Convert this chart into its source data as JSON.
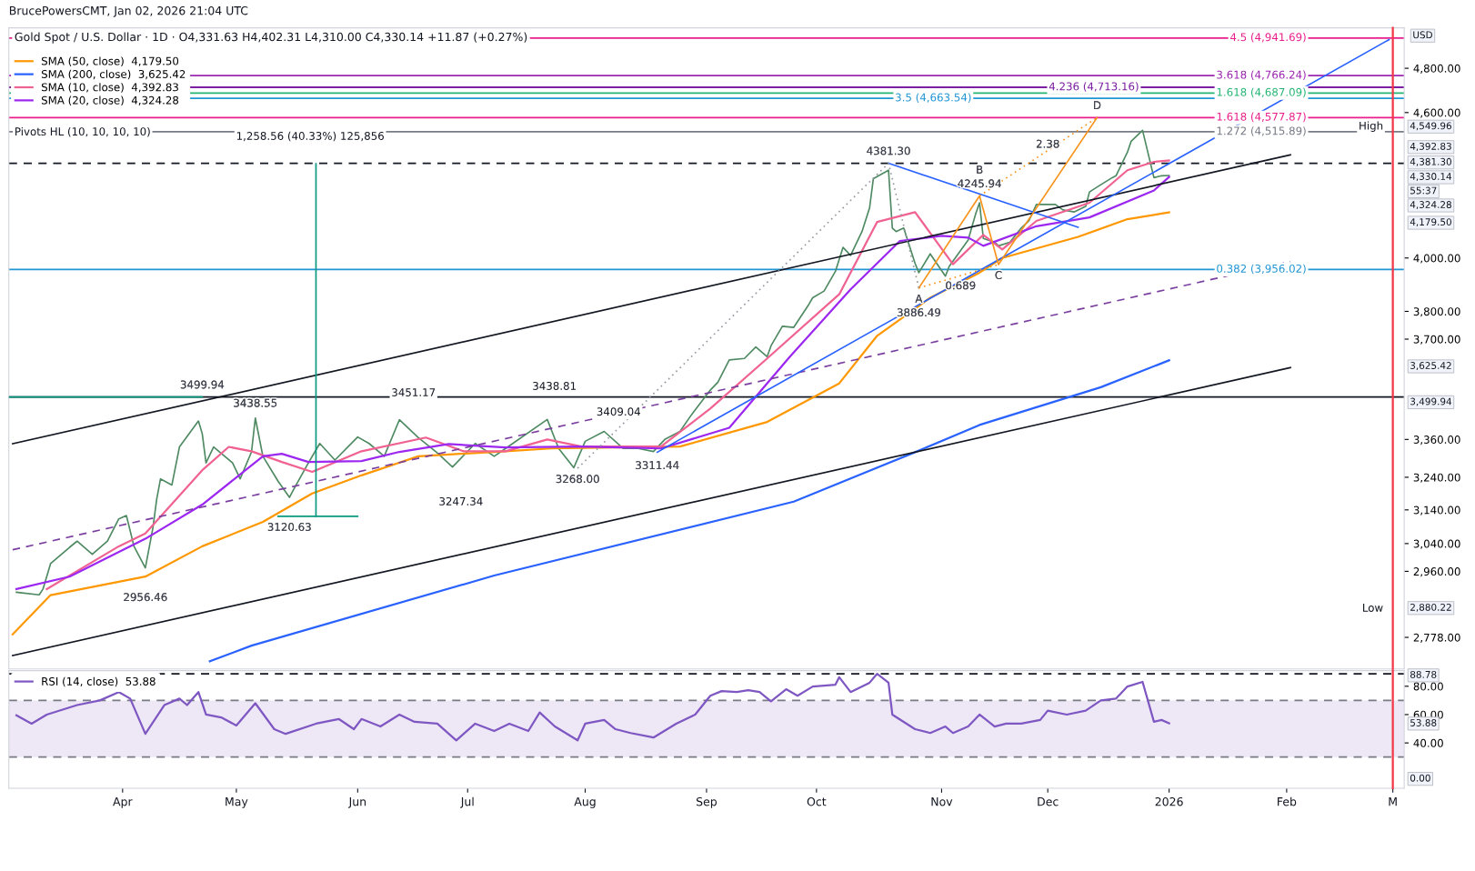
{
  "chart_data": [
    {
      "type": "line",
      "title": "Gold Spot / U.S. Dollar · 1D · O4,331.63 H4,402.31 L4,310.00 C4,330.14 +11.87 (+0.27%)",
      "subtitle": "BrucePowersCMT, Jan 02, 2026 21:04 UTC",
      "log": true,
      "legend": "top left",
      "tick_labels": "y",
      "xlim": [
        "2025-03-02",
        "2026-03-05"
      ],
      "ylim": [
        2695,
        4990
      ],
      "yticks": [
        {
          "value": 2778,
          "label": "2,778.00"
        },
        {
          "value": 2960,
          "label": "2,960.00"
        },
        {
          "value": 3040,
          "label": "3,040.00"
        },
        {
          "value": 3140,
          "label": "3,140.00"
        },
        {
          "value": 3240,
          "label": "3,240.00"
        },
        {
          "value": 3360,
          "label": "3,360.00"
        },
        {
          "value": 3700,
          "label": "3,700.00"
        },
        {
          "value": 3800,
          "label": "3,800.00"
        },
        {
          "value": 4000,
          "label": "4,000.00"
        },
        {
          "value": 4600,
          "label": "4,600.00"
        },
        {
          "value": 4800,
          "label": "4,800.00"
        }
      ],
      "series": [
        {
          "color": "#4f8a63",
          "x": [
            "2025-03-04",
            "2025-03-10",
            "2025-03-11",
            "2025-03-13",
            "2025-03-18",
            "2025-03-20",
            "2025-03-24",
            "2025-03-28",
            "2025-03-31",
            "2025-04-02",
            "2025-04-04",
            "2025-04-07",
            "2025-04-09",
            "2025-04-10",
            "2025-04-11",
            "2025-04-14",
            "2025-04-16",
            "2025-04-21",
            "2025-04-22",
            "2025-04-23",
            "2025-04-25",
            "2025-04-30",
            "2025-05-02",
            "2025-05-05",
            "2025-05-06",
            "2025-05-08",
            "2025-05-12",
            "2025-05-15",
            "2025-05-16",
            "2025-05-20",
            "2025-05-23",
            "2025-05-27",
            "2025-06-02",
            "2025-06-05",
            "2025-06-09",
            "2025-06-13",
            "2025-06-18",
            "2025-06-23",
            "2025-06-27",
            "2025-07-03",
            "2025-07-08",
            "2025-07-11",
            "2025-07-22",
            "2025-07-25",
            "2025-07-29",
            "2025-08-01",
            "2025-08-06",
            "2025-08-11",
            "2025-08-15",
            "2025-08-19",
            "2025-08-22",
            "2025-08-26",
            "2025-08-29",
            "2025-09-03",
            "2025-09-05",
            "2025-09-08",
            "2025-09-12",
            "2025-09-15",
            "2025-09-18",
            "2025-09-19",
            "2025-09-22",
            "2025-09-25",
            "2025-09-29",
            "2025-09-30",
            "2025-10-03",
            "2025-10-06",
            "2025-10-08",
            "2025-10-10",
            "2025-10-13",
            "2025-10-15",
            "2025-10-16",
            "2025-10-20",
            "2025-10-21",
            "2025-10-22",
            "2025-10-24",
            "2025-10-27",
            "2025-10-28",
            "2025-10-31",
            "2025-11-04",
            "2025-11-05",
            "2025-11-10",
            "2025-11-12",
            "2025-11-13",
            "2025-11-14",
            "2025-11-17",
            "2025-11-18",
            "2025-11-21",
            "2025-11-24",
            "2025-11-26",
            "2025-11-28",
            "2025-12-03",
            "2025-12-05",
            "2025-12-08",
            "2025-12-11",
            "2025-12-12",
            "2025-12-15",
            "2025-12-18",
            "2025-12-19",
            "2025-12-22",
            "2025-12-23",
            "2025-12-26",
            "2025-12-29",
            "2025-12-31",
            "2026-01-02"
          ],
          "values": [
            2901,
            2894,
            2910,
            2982,
            3029,
            3047,
            3009,
            3047,
            3113,
            3123,
            3032,
            2970,
            3087,
            3173,
            3235,
            3216,
            3336,
            3420,
            3379,
            3285,
            3336,
            3285,
            3235,
            3320,
            3430,
            3306,
            3228,
            3178,
            3200,
            3285,
            3347,
            3294,
            3368,
            3347,
            3306,
            3424,
            3366,
            3317,
            3272,
            3347,
            3306,
            3331,
            3425,
            3331,
            3270,
            3354,
            3386,
            3331,
            3331,
            3321,
            3360,
            3386,
            3440,
            3523,
            3550,
            3627,
            3632,
            3672,
            3638,
            3676,
            3746,
            3742,
            3826,
            3850,
            3875,
            3949,
            4041,
            4010,
            4103,
            4197,
            4317,
            4352,
            4117,
            4103,
            4117,
            3979,
            3944,
            4016,
            3931,
            3968,
            4070,
            4174,
            4218,
            4076,
            4061,
            4047,
            4061,
            4117,
            4145,
            4211,
            4211,
            4189,
            4181,
            4203,
            4262,
            4292,
            4321,
            4329,
            4428,
            4475,
            4522,
            4321,
            4329,
            4330.14
          ]
        },
        {
          "name": "SMA (50, close)  4,179.50",
          "color": "#ff9800",
          "x": [
            "2025-03-03",
            "2025-03-13",
            "2025-04-07",
            "2025-04-22",
            "2025-05-08",
            "2025-05-21",
            "2025-06-03",
            "2025-06-18",
            "2025-07-11",
            "2025-07-23",
            "2025-08-26",
            "2025-09-18",
            "2025-10-07",
            "2025-10-17",
            "2025-10-31",
            "2025-11-13",
            "2025-11-19",
            "2025-12-09",
            "2025-12-22",
            "2026-01-02"
          ],
          "values": [
            2786,
            2893,
            2945,
            3032,
            3104,
            3190,
            3246,
            3306,
            3322,
            3331,
            3337,
            3417,
            3546,
            3712,
            3850,
            3944,
            4000,
            4082,
            4152,
            4179.5
          ]
        },
        {
          "name": "SMA (200, close)  3,625.42",
          "color": "#2962ff",
          "x": [
            "2025-04-24",
            "2025-05-05",
            "2025-07-08",
            "2025-09-25",
            "2025-10-27",
            "2025-11-13",
            "2025-12-15",
            "2026-01-02"
          ],
          "values": [
            2715,
            2756,
            2948,
            3165,
            3319,
            3407,
            3533,
            3625.42
          ]
        },
        {
          "name": "SMA (10, close)  4,392.83",
          "color": "#f06292",
          "x": [
            "2025-03-12",
            "2025-03-31",
            "2025-04-07",
            "2025-04-22",
            "2025-04-29",
            "2025-05-05",
            "2025-05-13",
            "2025-05-21",
            "2025-06-03",
            "2025-06-20",
            "2025-06-30",
            "2025-07-11",
            "2025-07-22",
            "2025-07-31",
            "2025-08-21",
            "2025-09-03",
            "2025-09-18",
            "2025-10-07",
            "2025-10-17",
            "2025-10-27",
            "2025-11-06",
            "2025-11-14",
            "2025-11-19",
            "2025-11-28",
            "2025-12-12",
            "2025-12-22",
            "2025-12-29",
            "2026-01-02"
          ],
          "values": [
            2910,
            3032,
            3070,
            3262,
            3336,
            3322,
            3288,
            3257,
            3322,
            3366,
            3322,
            3322,
            3360,
            3337,
            3337,
            3461,
            3632,
            3863,
            4141,
            4180,
            3976,
            4090,
            4033,
            4145,
            4218,
            4352,
            4387,
            4392.83
          ]
        },
        {
          "name": "SMA (20, close)  4,324.28",
          "color": "#9c27f0",
          "x": [
            "2025-03-04",
            "2025-03-18",
            "2025-04-07",
            "2025-04-22",
            "2025-05-08",
            "2025-05-13",
            "2025-05-20",
            "2025-06-03",
            "2025-06-13",
            "2025-06-26",
            "2025-07-11",
            "2025-07-31",
            "2025-08-21",
            "2025-09-08",
            "2025-09-24",
            "2025-10-10",
            "2025-10-23",
            "2025-11-03",
            "2025-11-10",
            "2025-11-14",
            "2025-11-28",
            "2025-12-12",
            "2025-12-29",
            "2026-01-02"
          ],
          "values": [
            2910,
            2945,
            3054,
            3156,
            3306,
            3314,
            3288,
            3291,
            3320,
            3345,
            3334,
            3337,
            3331,
            3398,
            3638,
            3881,
            4066,
            4086,
            4079,
            4047,
            4124,
            4159,
            4268,
            4324.28
          ]
        },
        {
          "color": "#131722",
          "x": [
            "2025-03-03",
            "2026-02-03"
          ],
          "values": [
            3346,
            4417
          ]
        },
        {
          "color": "#131722",
          "x": [
            "2025-03-03",
            "2026-02-03"
          ],
          "values": [
            2730,
            3600
          ]
        },
        {
          "color": "#7b3fa0",
          "line_style": "dashed",
          "x": [
            "2025-03-03",
            "2026-02-03"
          ],
          "values": [
            3022,
            3986
          ]
        },
        {
          "color": "#2962ff",
          "x": [
            "2025-08-20",
            "2026-03-01"
          ],
          "values": [
            3319,
            4934
          ]
        },
        {
          "color": "#2962ff",
          "x": [
            "2025-10-20",
            "2025-12-09"
          ],
          "values": [
            4381.3,
            4120
          ]
        },
        {
          "color": "#f7931a",
          "x": [
            "2025-10-28",
            "2025-11-13",
            "2025-11-18",
            "2025-12-14"
          ],
          "values": [
            3886.49,
            4245.94,
            3975,
            4577.87
          ]
        },
        {
          "color": "#f7931a",
          "line_style": "dotted",
          "x": [
            "2025-10-28",
            "2025-11-18"
          ],
          "values": [
            3886.49,
            3975
          ]
        },
        {
          "color": "#f7931a",
          "line_style": "dotted",
          "x": [
            "2025-11-13",
            "2025-12-14"
          ],
          "values": [
            4245.94,
            4577.87
          ]
        },
        {
          "color": "#9598a1",
          "line_style": "dotted",
          "x": [
            "2025-07-30",
            "2025-10-20",
            "2025-10-28"
          ],
          "values": [
            3268.0,
            4381.3,
            3886.49
          ]
        },
        {
          "color": "#089981",
          "x": [
            "2025-05-22",
            "2025-05-22"
          ],
          "values": [
            3120.63,
            4379.19
          ]
        },
        {
          "color": "#089981",
          "x": [
            "2025-05-12",
            "2025-06-02"
          ],
          "values": [
            3120.63,
            3120.63
          ]
        },
        {
          "color": "#089981",
          "x": [
            "2025-03-02",
            "2025-04-22"
          ],
          "values": [
            3499.94,
            3499.94
          ]
        }
      ],
      "ref_lines": [
        {
          "axis": "y",
          "value": 4941.69,
          "label": "4.5 (4,941.69)",
          "color": "#e91e8c"
        },
        {
          "axis": "y",
          "value": 4766.24,
          "label": "3.618 (4,766.24)",
          "color": "#9c27b0"
        },
        {
          "axis": "y",
          "value": 4713.16,
          "label": "4.236 (4,713.16)",
          "color": "#7b1fa2"
        },
        {
          "axis": "y",
          "value": 4687.09,
          "label": "1.618 (4,687.09)",
          "color": "#22b573"
        },
        {
          "axis": "y",
          "value": 4663.54,
          "label": "3.5 (4,663.54)",
          "color": "#2196d3"
        },
        {
          "axis": "y",
          "value": 4577.87,
          "label": "1.618 (4,577.87)",
          "color": "#e91e8c"
        },
        {
          "axis": "y",
          "value": 4515.89,
          "label": "1.272 (4,515.89)",
          "color": "#787b86"
        },
        {
          "axis": "y",
          "value": 3956.02,
          "label": "0.382 (3,956.02)",
          "color": "#2196d3"
        },
        {
          "axis": "y",
          "value": 4381.3,
          "color": "#131722",
          "line_style": "dashed"
        },
        {
          "axis": "y",
          "value": 3499.94,
          "color": "#131722"
        },
        {
          "axis": "x",
          "value": "2026-03-02",
          "color": "#f23645"
        }
      ],
      "annotations": [
        "Pivots HL (10, 10, 10, 10)",
        "USD",
        "1,258.56 (40.33%) 125,856",
        "3451.17",
        "3247.34",
        "3438.81",
        "3409.04",
        "High",
        "Low",
        "4,549.96",
        "4,392.83",
        "4,381.30",
        "4,330.14",
        "55:37",
        "4,324.28",
        "4,179.50",
        "3,625.42",
        "3,499.94",
        "2,880.22",
        {
          "text": "3499.94",
          "x": "2025-04-22",
          "y": 3499.94
        },
        {
          "text": "3438.55",
          "x": "2025-05-06",
          "y": 3438.55
        },
        {
          "text": "2956.46",
          "x": "2025-04-07",
          "y": 2956.46
        },
        {
          "text": "3120.63",
          "x": "2025-05-15",
          "y": 3120.63
        },
        {
          "text": "3268.00",
          "x": "2025-07-30",
          "y": 3268.0
        },
        {
          "text": "3311.44",
          "x": "2025-08-20",
          "y": 3311.44
        },
        {
          "text": "4381.30",
          "x": "2025-10-20",
          "y": 4381.3
        },
        {
          "text": "3886.49",
          "x": "2025-10-28",
          "y": 3886.49
        },
        {
          "text": "4245.94",
          "x": "2025-11-13",
          "y": 4245.94
        },
        {
          "text": "A",
          "x": "2025-10-28",
          "y": 3886.49
        },
        {
          "text": "B",
          "x": "2025-11-13",
          "y": 4245.94
        },
        {
          "text": "C",
          "x": "2025-11-18",
          "y": 3975
        },
        {
          "text": "D",
          "x": "2025-12-14",
          "y": 4577.87
        },
        {
          "text": "2.38",
          "x": "2025-12-01",
          "y": 4411
        },
        {
          "text": "0.689",
          "x": "2025-11-08",
          "y": 3936
        }
      ]
    },
    {
      "type": "line",
      "legend": "top left",
      "xlim": [
        "2025-03-02",
        "2026-03-05"
      ],
      "xticks": [
        {
          "value": "2025-04-01",
          "label": "Apr"
        },
        {
          "value": "2025-05-01",
          "label": "May"
        },
        {
          "value": "2025-06-02",
          "label": "Jun"
        },
        {
          "value": "2025-07-01",
          "label": "Jul"
        },
        {
          "value": "2025-08-01",
          "label": "Aug"
        },
        {
          "value": "2025-09-02",
          "label": "Sep"
        },
        {
          "value": "2025-10-01",
          "label": "Oct"
        },
        {
          "value": "2025-11-03",
          "label": "Nov"
        },
        {
          "value": "2025-12-01",
          "label": "Dec"
        },
        {
          "value": "2026-01-02",
          "label": "2026"
        },
        {
          "value": "2026-02-02",
          "label": "Feb"
        },
        {
          "value": "2026-03-02",
          "label": "M"
        }
      ],
      "ylim": [
        8,
        91
      ],
      "yticks": [
        {
          "value": 40,
          "label": "40.00"
        },
        {
          "value": 60,
          "label": "60.00"
        },
        {
          "value": 80,
          "label": "80.00"
        }
      ],
      "series": [
        {
          "name": "RSI (14, close)  53.88",
          "color": "#7e57c2",
          "x": [
            "2025-03-04",
            "2025-03-08",
            "2025-03-12",
            "2025-03-20",
            "2025-03-26",
            "2025-03-31",
            "2025-04-03",
            "2025-04-07",
            "2025-04-12",
            "2025-04-16",
            "2025-04-18",
            "2025-04-21",
            "2025-04-23",
            "2025-04-27",
            "2025-05-01",
            "2025-05-06",
            "2025-05-11",
            "2025-05-14",
            "2025-05-22",
            "2025-05-28",
            "2025-06-01",
            "2025-06-03",
            "2025-06-08",
            "2025-06-13",
            "2025-06-17",
            "2025-06-23",
            "2025-06-28",
            "2025-07-03",
            "2025-07-08",
            "2025-07-12",
            "2025-07-17",
            "2025-07-20",
            "2025-07-24",
            "2025-07-30",
            "2025-08-01",
            "2025-08-06",
            "2025-08-09",
            "2025-08-13",
            "2025-08-19",
            "2025-08-25",
            "2025-08-30",
            "2025-09-03",
            "2025-09-06",
            "2025-09-10",
            "2025-09-13",
            "2025-09-16",
            "2025-09-19",
            "2025-09-23",
            "2025-09-26",
            "2025-09-30",
            "2025-10-06",
            "2025-10-07",
            "2025-10-10",
            "2025-10-15",
            "2025-10-17",
            "2025-10-20",
            "2025-10-21",
            "2025-10-27",
            "2025-10-31",
            "2025-11-04",
            "2025-11-06",
            "2025-11-10",
            "2025-11-13",
            "2025-11-17",
            "2025-11-20",
            "2025-11-24",
            "2025-11-29",
            "2025-12-01",
            "2025-12-06",
            "2025-12-11",
            "2025-12-15",
            "2025-12-19",
            "2025-12-22",
            "2025-12-26",
            "2025-12-29",
            "2025-12-31",
            "2026-01-02"
          ],
          "values": [
            59.5,
            53.6,
            60,
            66.7,
            70,
            75.9,
            71.3,
            46.4,
            66.7,
            71.3,
            66.7,
            75.9,
            60,
            58,
            52.3,
            68,
            49.7,
            46.4,
            53.6,
            56.9,
            49.7,
            56.9,
            51.6,
            60,
            54.9,
            53.6,
            41.8,
            53.6,
            48.4,
            53.6,
            48.4,
            61.5,
            51.6,
            41.8,
            53.6,
            56.2,
            49.7,
            47,
            43.8,
            53.6,
            60,
            73.3,
            76.6,
            75.9,
            77.2,
            75.9,
            69.3,
            77.9,
            73.3,
            79.8,
            81.1,
            86.4,
            75.9,
            82.5,
            88.8,
            82.5,
            60,
            49.7,
            47,
            51.6,
            47,
            51.6,
            60,
            51.6,
            53.6,
            53.6,
            56.2,
            62.8,
            60,
            62.8,
            70,
            71.3,
            79.8,
            83.1,
            54.9,
            56.2,
            53.9
          ]
        }
      ],
      "bands": [
        {
          "axis": "y",
          "from": 30,
          "to": 70,
          "color": "#ede7f6"
        }
      ],
      "ref_lines": [
        {
          "axis": "y",
          "value": 70,
          "color": "#787b86",
          "line_style": "dashed"
        },
        {
          "axis": "y",
          "value": 30,
          "color": "#787b86",
          "line_style": "dashed"
        },
        {
          "axis": "y",
          "value": 88.78,
          "color": "#131722",
          "line_style": "dashed"
        },
        {
          "axis": "x",
          "value": "2026-03-02",
          "color": "#f23645"
        }
      ],
      "annotations": [
        "88.78",
        "53.88",
        "0.00"
      ]
    }
  ]
}
